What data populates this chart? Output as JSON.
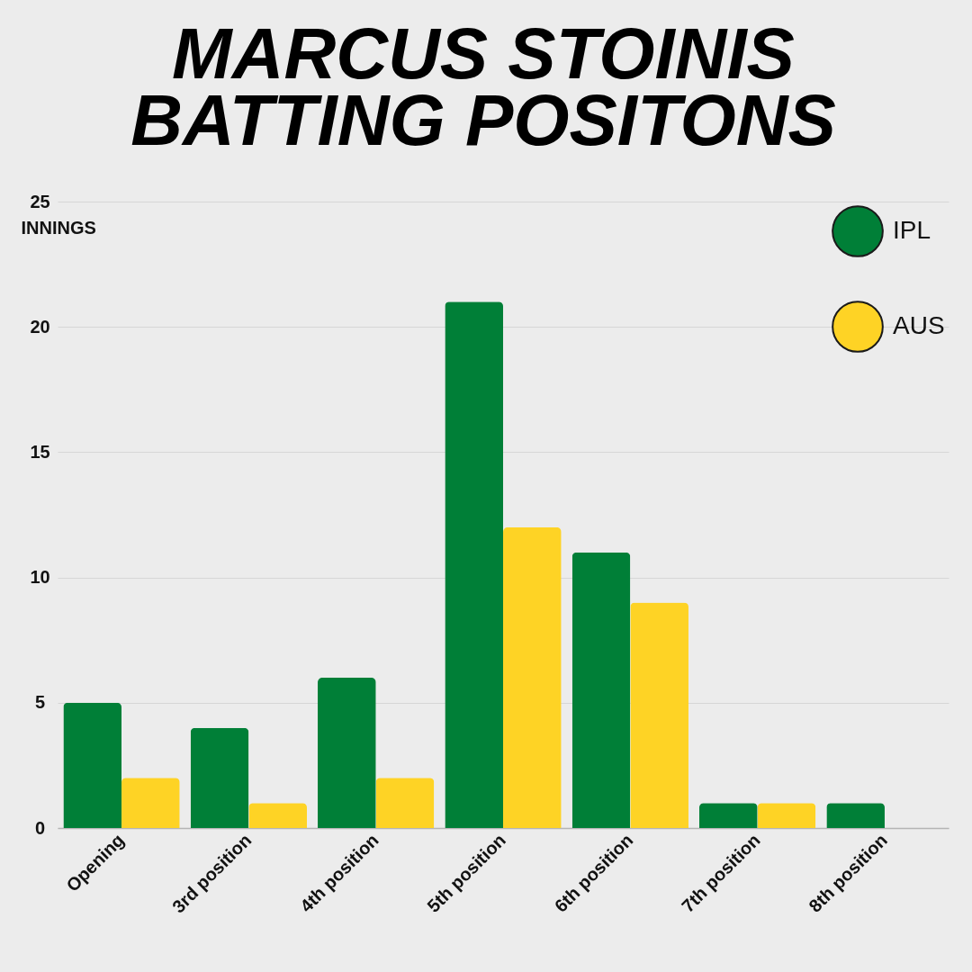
{
  "chart_data": {
    "type": "bar",
    "title": "MARCUS STOINIS\nBATTING POSITONS",
    "ylabel": "INNINGS",
    "categories": [
      "Opening",
      "3rd position",
      "4th position",
      "5th position",
      "6th position",
      "7th position",
      "8th position"
    ],
    "series": [
      {
        "name": "IPL",
        "color": "#007f37",
        "values": [
          5,
          4,
          6,
          21,
          11,
          1,
          1
        ]
      },
      {
        "name": "AUS",
        "color": "#fed325",
        "values": [
          2,
          1,
          2,
          12,
          9,
          1,
          null
        ]
      }
    ],
    "ylim": [
      0,
      25
    ],
    "yticks": [
      0,
      5,
      10,
      15,
      20,
      25
    ],
    "grid": "y",
    "legend": "top right"
  }
}
